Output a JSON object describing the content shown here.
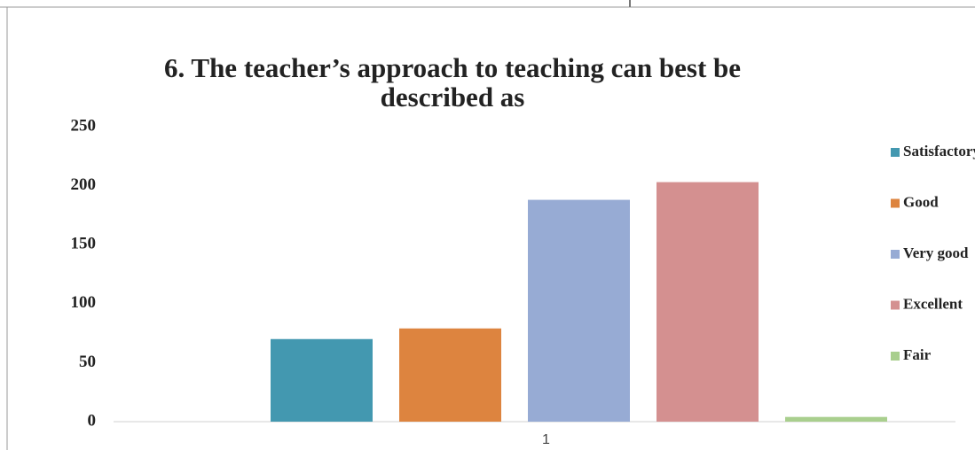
{
  "chart_data": {
    "type": "bar",
    "title": "6. The teacher’s approach to teaching can best be described as",
    "categories": [
      "1"
    ],
    "series": [
      {
        "name": "Satisfactory",
        "color": "#4398b0",
        "values": [
          70
        ]
      },
      {
        "name": "Good",
        "color": "#dd843f",
        "values": [
          79
        ]
      },
      {
        "name": "Very good",
        "color": "#97abd4",
        "values": [
          188
        ]
      },
      {
        "name": "Excellent",
        "color": "#d49090",
        "values": [
          203
        ]
      },
      {
        "name": "Fair",
        "color": "#a9cf8e",
        "values": [
          4
        ]
      }
    ],
    "ylim": [
      0,
      250
    ],
    "yticks": [
      0,
      50,
      100,
      150,
      200,
      250
    ],
    "grid": false,
    "legend": "right"
  }
}
